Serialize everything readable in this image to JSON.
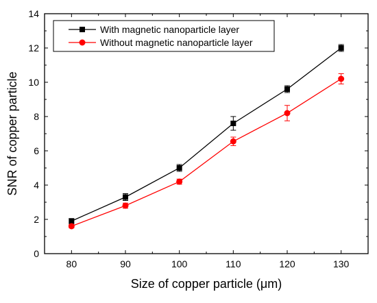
{
  "chart_data": {
    "type": "line",
    "xlabel": "Size of copper particle  (μm)",
    "ylabel": "SNR of copper particle",
    "x": [
      80,
      90,
      100,
      110,
      120,
      130
    ],
    "xlim": [
      75,
      135
    ],
    "ylim": [
      0,
      14
    ],
    "xticks": [
      "80",
      "90",
      "100",
      "110",
      "120",
      "130"
    ],
    "yticks": [
      "0",
      "2",
      "4",
      "6",
      "8",
      "10",
      "12",
      "14"
    ],
    "grid": false,
    "legend_position": "top-left",
    "series": [
      {
        "name": "With magnetic nanoparticle layer",
        "color": "#000000",
        "marker": "square",
        "values": [
          1.9,
          3.3,
          5.0,
          7.6,
          9.6,
          12.0
        ],
        "errors": [
          0.15,
          0.2,
          0.2,
          0.4,
          0.2,
          0.2
        ]
      },
      {
        "name": "Without magnetic nanoparticle layer",
        "color": "#ff0000",
        "marker": "circle",
        "values": [
          1.6,
          2.8,
          4.2,
          6.55,
          8.2,
          10.2
        ],
        "errors": [
          0.1,
          0.15,
          0.15,
          0.25,
          0.45,
          0.3
        ]
      }
    ]
  }
}
